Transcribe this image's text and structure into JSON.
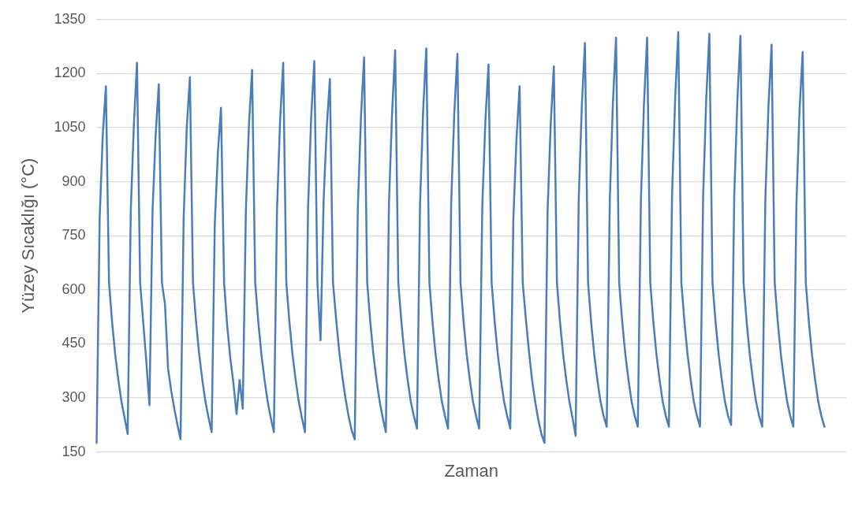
{
  "chart_data": {
    "type": "line",
    "xlabel": "Zaman",
    "ylabel": "Yüzey Sıcaklığı (°C)",
    "color": "#4a7ebb",
    "ylim": [
      150,
      1350
    ],
    "yticks": [
      150,
      300,
      450,
      600,
      750,
      900,
      1050,
      1200,
      1350
    ],
    "grid": "y",
    "legend": false,
    "marker": "none",
    "line_style": "solid",
    "tick_labels": "y",
    "categories": [
      null,
      null,
      null,
      null,
      null,
      null,
      null,
      null,
      null,
      null,
      null,
      null,
      null,
      null,
      null,
      null,
      null,
      null,
      null,
      null,
      null,
      null,
      null,
      null,
      null,
      null,
      null,
      null,
      null,
      null,
      null,
      null,
      null,
      null,
      null,
      null,
      null,
      null,
      null,
      null,
      null,
      null,
      null,
      null,
      null,
      null,
      null,
      null,
      null,
      null,
      null,
      null,
      null,
      null,
      null,
      null,
      null,
      null,
      null,
      null,
      null,
      null,
      null,
      null,
      null,
      null,
      null,
      null,
      null,
      null,
      null,
      null,
      null,
      null,
      null,
      null,
      null,
      null,
      null,
      null,
      null,
      null,
      null,
      null,
      null,
      null,
      null,
      null,
      null,
      null,
      null,
      null,
      null,
      null,
      null,
      null,
      null,
      null,
      null,
      null,
      null,
      null,
      null,
      null,
      null,
      null,
      null,
      null,
      null,
      null,
      null,
      null,
      null,
      null,
      null,
      null,
      null,
      null,
      null,
      null,
      null,
      null,
      null,
      null,
      null,
      null,
      null,
      null,
      null,
      null,
      null,
      null,
      null,
      null,
      null,
      null,
      null,
      null,
      null,
      null,
      null,
      null,
      null,
      null,
      null,
      null,
      null,
      null,
      null,
      null,
      null,
      null,
      null,
      null,
      null,
      null,
      null,
      null,
      null,
      null,
      null,
      null,
      null,
      null,
      null,
      null,
      null,
      null,
      null,
      null,
      null,
      null,
      null,
      null,
      null,
      null,
      null,
      null,
      null,
      null,
      null,
      null,
      null,
      null,
      null,
      null,
      null,
      null,
      null,
      null,
      null,
      null,
      null,
      null,
      null,
      null,
      null,
      null,
      null,
      null,
      null,
      null,
      null,
      null,
      null,
      null,
      null,
      null,
      null,
      null,
      null,
      null,
      null,
      null,
      null,
      null,
      null,
      null,
      null,
      null,
      null,
      null,
      null,
      null,
      null,
      null,
      null,
      null,
      null,
      null,
      null,
      null,
      null,
      null,
      null,
      null,
      null,
      null,
      null,
      null,
      null,
      null
    ],
    "values": [
      175,
      800,
      1030,
      1165,
      620,
      510,
      420,
      350,
      290,
      245,
      200,
      820,
      1060,
      1230,
      620,
      510,
      400,
      280,
      820,
      1030,
      1170,
      620,
      560,
      380,
      320,
      270,
      225,
      185,
      800,
      1050,
      1190,
      620,
      510,
      420,
      350,
      290,
      245,
      205,
      780,
      980,
      1105,
      620,
      500,
      410,
      340,
      255,
      350,
      270,
      820,
      1060,
      1210,
      620,
      510,
      420,
      350,
      290,
      245,
      205,
      820,
      1070,
      1230,
      620,
      510,
      420,
      350,
      290,
      245,
      205,
      830,
      1080,
      1235,
      620,
      460,
      850,
      1050,
      1185,
      620,
      520,
      430,
      360,
      300,
      250,
      210,
      185,
      830,
      1080,
      1245,
      620,
      510,
      420,
      350,
      290,
      245,
      205,
      840,
      1090,
      1265,
      620,
      510,
      420,
      350,
      290,
      250,
      215,
      840,
      1100,
      1270,
      620,
      510,
      420,
      350,
      290,
      250,
      215,
      840,
      1090,
      1255,
      620,
      510,
      420,
      350,
      290,
      250,
      215,
      830,
      1070,
      1225,
      620,
      510,
      420,
      350,
      290,
      250,
      215,
      800,
      1020,
      1165,
      620,
      520,
      430,
      350,
      290,
      240,
      200,
      175,
      820,
      1060,
      1220,
      620,
      510,
      420,
      350,
      290,
      245,
      195,
      850,
      1110,
      1285,
      620,
      510,
      420,
      350,
      290,
      250,
      220,
      850,
      1120,
      1300,
      620,
      510,
      420,
      350,
      290,
      250,
      220,
      850,
      1120,
      1300,
      620,
      510,
      420,
      350,
      290,
      250,
      220,
      860,
      1130,
      1315,
      620,
      510,
      420,
      350,
      290,
      250,
      220,
      860,
      1130,
      1310,
      620,
      510,
      420,
      350,
      290,
      250,
      225,
      860,
      1125,
      1305,
      620,
      510,
      420,
      350,
      290,
      250,
      220,
      850,
      1110,
      1280,
      620,
      510,
      420,
      350,
      290,
      250,
      220,
      840,
      1100,
      1260,
      620,
      510,
      420,
      350,
      290,
      250,
      220,
      null,
      null,
      null,
      null,
      null,
      null,
      null
    ]
  }
}
